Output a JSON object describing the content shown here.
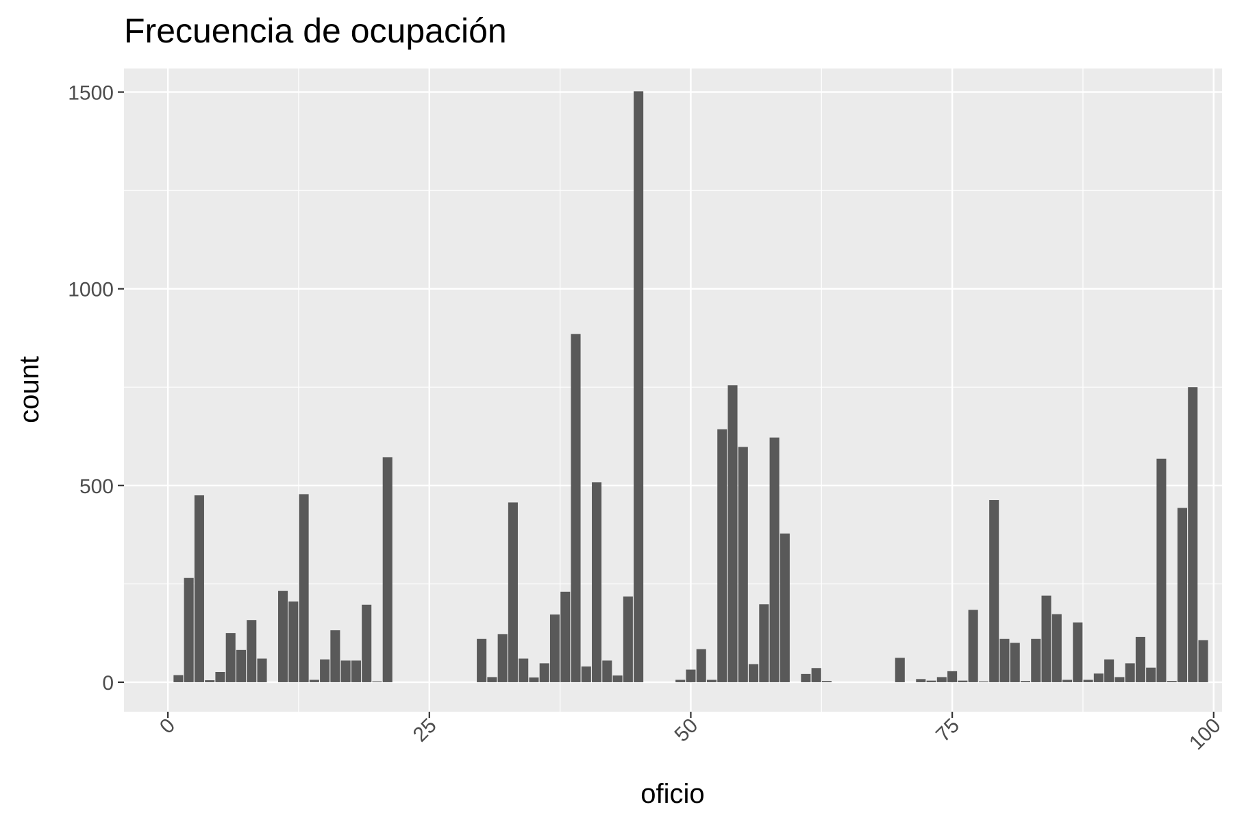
{
  "chart_data": {
    "type": "bar",
    "title": "Frecuencia de ocupación",
    "xlabel": "oficio",
    "ylabel": "count",
    "xlim": [
      -4.2,
      100.8
    ],
    "ylim": [
      -75,
      1560
    ],
    "x_ticks": [
      0,
      25,
      50,
      75,
      100
    ],
    "x_tick_labels": [
      "0",
      "25",
      "50",
      "75",
      "100"
    ],
    "y_ticks": [
      0,
      500,
      1000,
      1500
    ],
    "y_tick_labels": [
      "0",
      "500",
      "1000",
      "1500"
    ],
    "y_minor_ticks": [
      250,
      750,
      1250
    ],
    "x_minor_ticks": [
      12.5,
      37.5,
      62.5,
      87.5
    ],
    "grid": true,
    "bar_width": 1,
    "bar_color": "#595959",
    "panel_color": "#ebebeb",
    "grid_color": "#ffffff",
    "x": [
      1,
      2,
      3,
      4,
      5,
      6,
      7,
      8,
      9,
      11,
      12,
      13,
      14,
      15,
      16,
      17,
      18,
      19,
      20,
      21,
      30,
      31,
      32,
      33,
      34,
      35,
      36,
      37,
      38,
      39,
      40,
      41,
      42,
      43,
      44,
      45,
      49,
      50,
      51,
      52,
      53,
      54,
      55,
      56,
      57,
      58,
      59,
      61,
      62,
      63,
      70,
      72,
      73,
      74,
      75,
      76,
      77,
      78,
      79,
      80,
      81,
      82,
      83,
      84,
      85,
      86,
      87,
      88,
      89,
      90,
      91,
      92,
      93,
      94,
      95,
      96,
      97,
      98,
      99
    ],
    "values": [
      18,
      265,
      475,
      5,
      26,
      125,
      82,
      158,
      60,
      232,
      205,
      478,
      6,
      58,
      132,
      55,
      55,
      197,
      2,
      572,
      110,
      13,
      122,
      457,
      60,
      12,
      48,
      172,
      230,
      885,
      40,
      508,
      55,
      17,
      218,
      1502,
      6,
      32,
      84,
      6,
      643,
      755,
      598,
      46,
      198,
      622,
      378,
      21,
      36,
      3,
      62,
      8,
      4,
      13,
      28,
      4,
      184,
      2,
      463,
      110,
      100,
      3,
      110,
      220,
      173,
      6,
      152,
      6,
      22,
      58,
      13,
      48,
      115,
      37,
      568,
      3,
      443,
      750,
      107
    ]
  }
}
